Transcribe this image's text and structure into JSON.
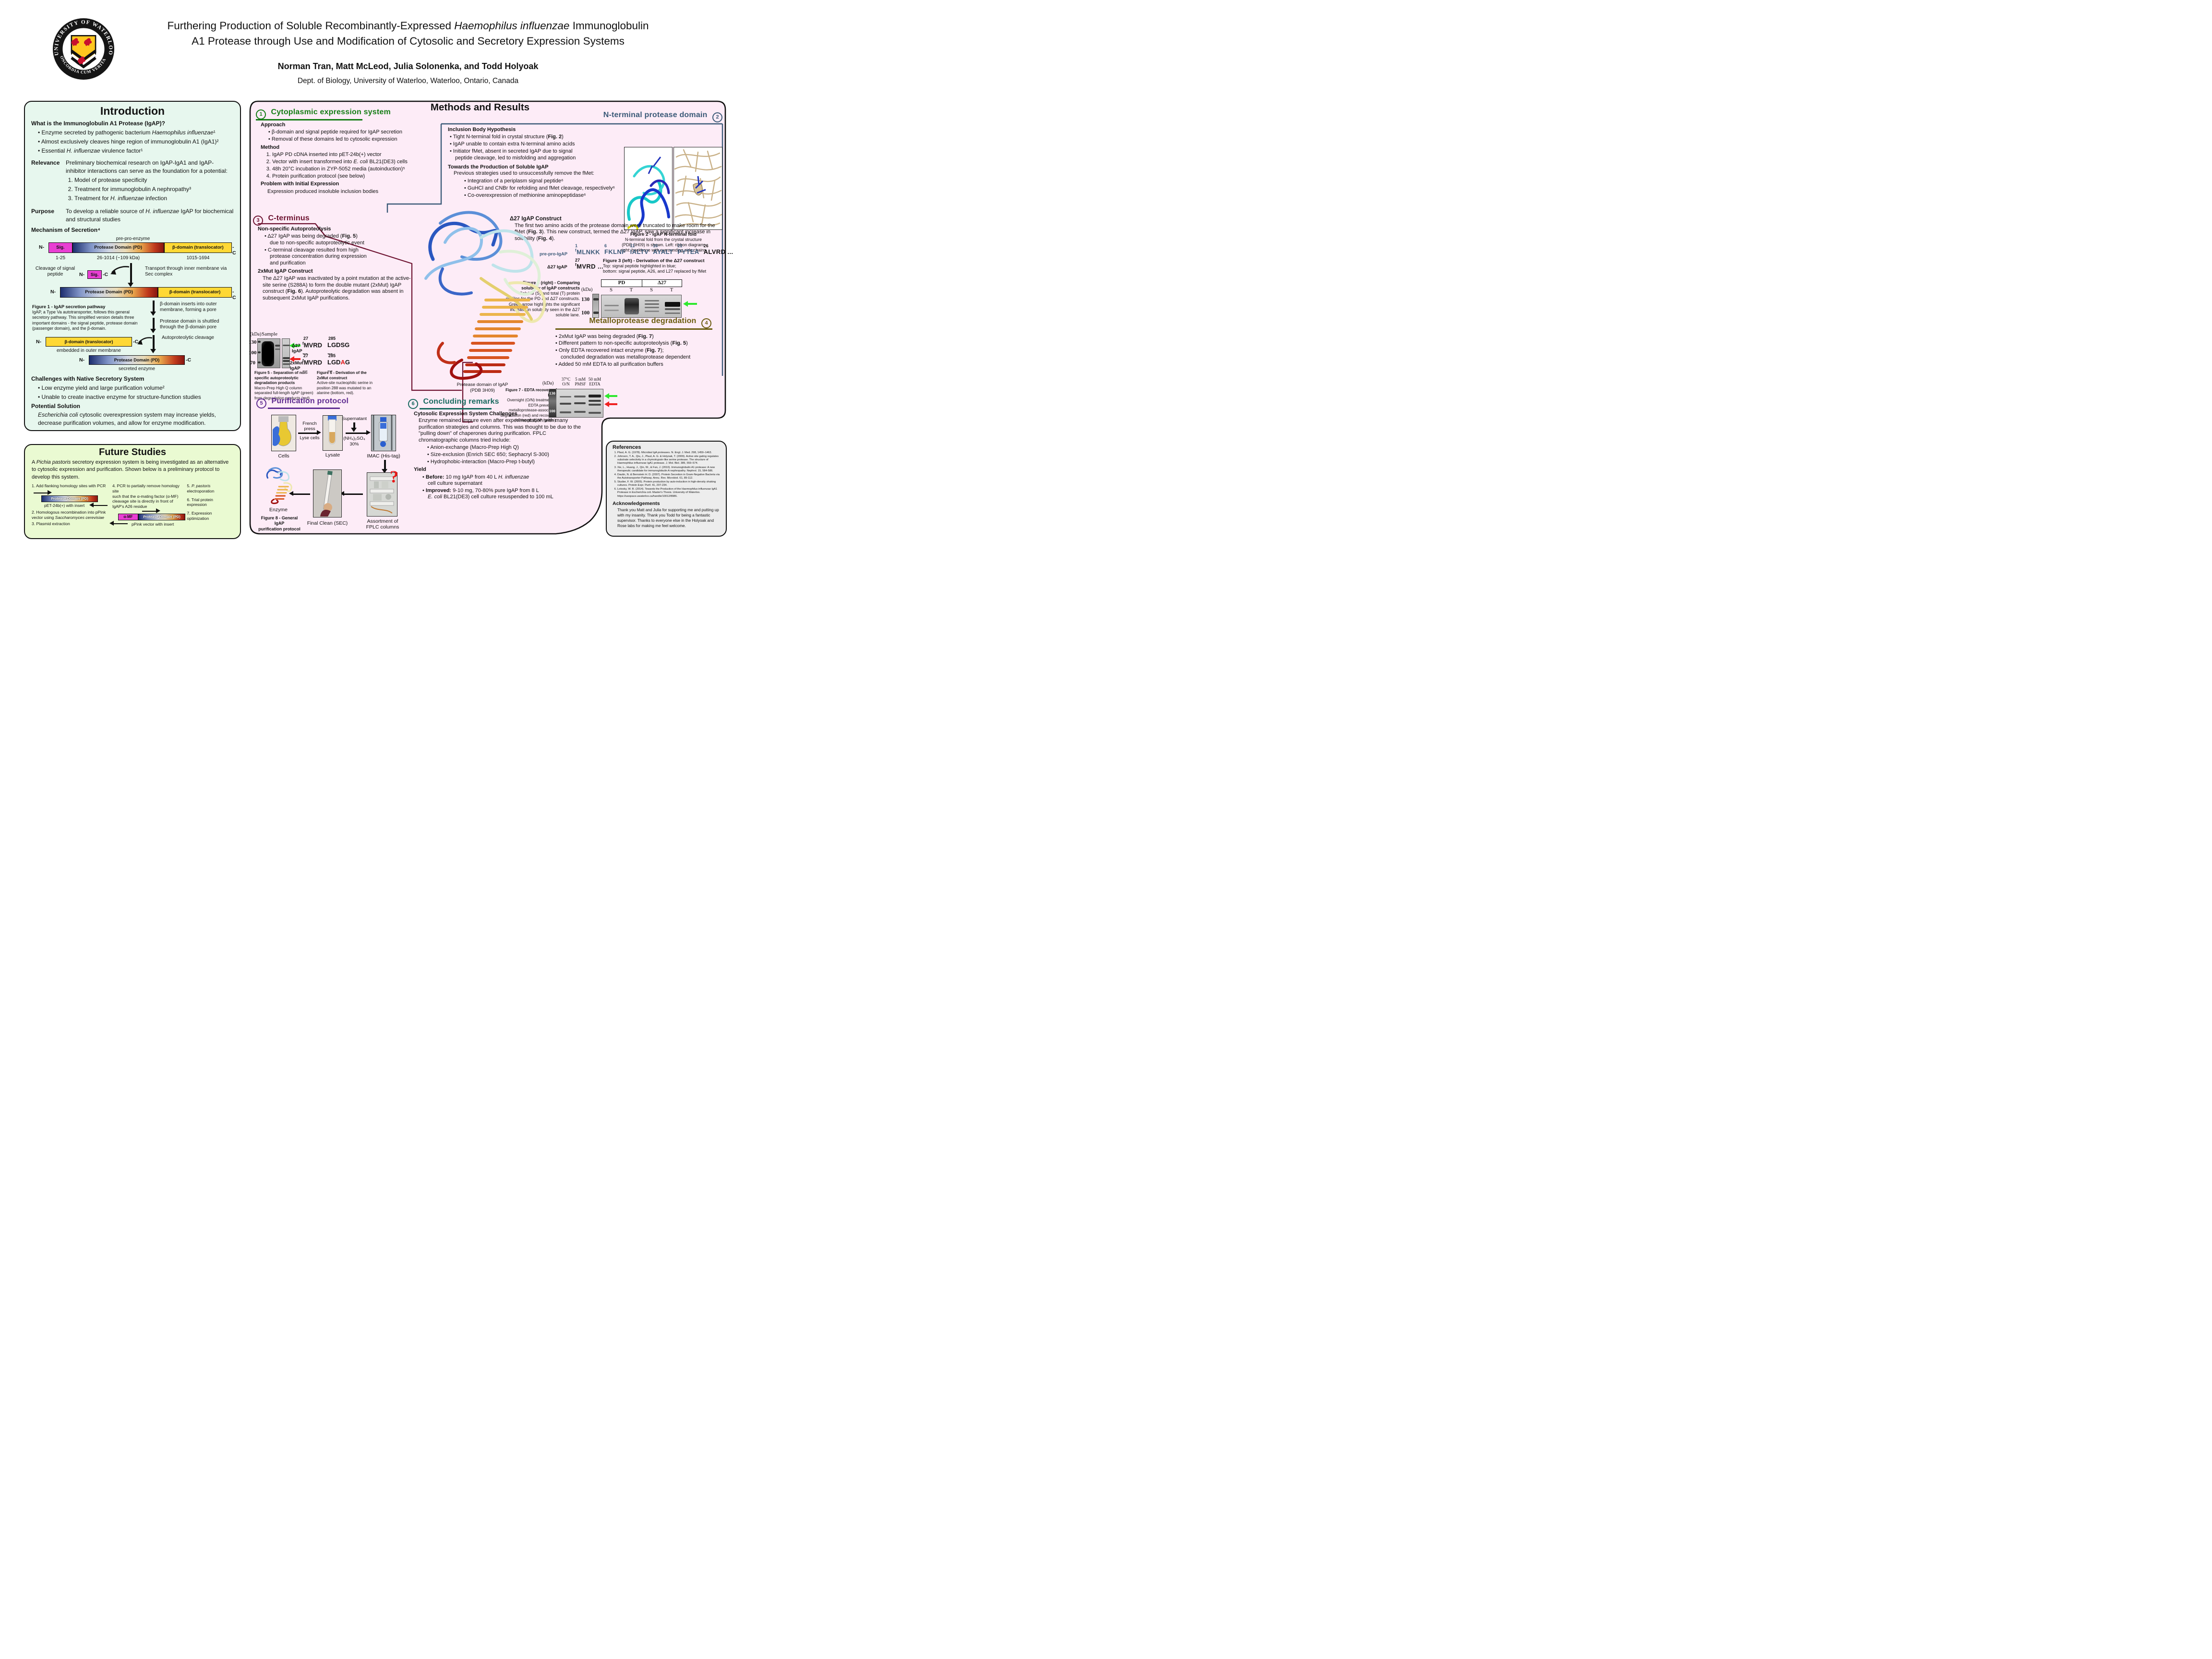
{
  "header": {
    "title_pre": "Furthering Production of Soluble Recombinantly-Expressed ",
    "title_species": "Haemophilus influenzae",
    "title_post": " Immunoglobulin",
    "title_line2": "A1 Protease through Use and Modification of Cytosolic and Secretory Expression Systems",
    "authors": "Norman Tran, Matt McLeod, Julia Solonenka, and Todd Holyoak",
    "affiliation": "Dept. of Biology, University of Waterloo, Waterloo, Ontario, Canada",
    "logo_top": "UNIVERSITY OF WATERLOO",
    "logo_bottom": "CONCORDIA CUM VERITATE"
  },
  "intro": {
    "title": "Introduction",
    "q": "What is the Immunoglobulin A1 Protease (IgAP)?",
    "q_bullets": [
      "Enzyme secreted by pathogenic bacterium _Haemophilus influenzae_¹",
      "Almost exclusively cleaves hinge region of immunoglobulin A1 (IgA1)²",
      "Essential _H. influenzae_ virulence factor¹"
    ],
    "relevance_label": "Relevance",
    "relevance_text": "Preliminary biochemical research on IgAP-IgA1 and IgAP-inhibitor interactions can serve as the foundation for a potential:",
    "relevance_items": [
      "Model of protease specificity",
      "Treatment for immunoglobulin A nephropathy³",
      "Treatment for _H. influenzae_ infection"
    ],
    "purpose_label": "Purpose",
    "purpose_text": "To develop a reliable source of _H. influenzae_ IgAP for biochemical and structural studies",
    "mechanism_label": "Mechanism of Secretion⁴",
    "fig1": {
      "pre_pro": "pre-pro-enzyme",
      "n": "N-",
      "c": "-C",
      "sig": "Sig.",
      "pd": "Protease Domain (PD)",
      "bd": "β-domain (translocator)",
      "r1": "1-25",
      "r2": "26-1014 (~109 kDa)",
      "r3": "1015-1694",
      "cleave": "Cleavage of signal peptide",
      "transport": "Transport through inner membrane via Sec complex",
      "insert": "β-domain inserts into outer membrane, forming a pore",
      "shuttle": "Protease domain is shuttled through the β-domain pore",
      "auto": "Autoproteolytic cleavage",
      "embedded": "embedded in outer membrane",
      "secreted": "secreted enzyme",
      "cap_title": "Figure 1 - IgAP secretion pathway",
      "cap_body": "IgAP, a Type Va autotransporter, follows this general secretory pathway. This simplified version details three important domains - the signal peptide, protease domain (passenger domain), and the β-domain."
    },
    "challenges_label": "Challenges with Native Secretory System",
    "challenges": [
      "Low enzyme yield and large purification volume²",
      "Unable to create inactive enzyme for structure-function studies"
    ],
    "solution_label": "Potential Solution",
    "solution_text": "_Escherichia coli_ cytosolic overexpression system may increase yields, decrease purification volumes, and allow for enzyme modification."
  },
  "future": {
    "title": "Future Studies",
    "intro_text": "A _Pichia pastoris_ secretory expression system is being investigated as an alternative to cytosolic expression and purification. Shown below is a preliminary protocol to develop this system.",
    "step1": "1. Add flanking homology sites with PCR",
    "pd": "Protease Domain (PD)",
    "pet": "pET-24b(+) with insert",
    "step2": "2. Homologous recombination into pPink\n    vector using _Saccharomyces cerevisiae_",
    "step3": "3. Plasmid extraction",
    "step4": "4. PCR to partially remove homology site\n    such that the α-mating factor (α-MF)\n    cleavage site is directly in front of\n    IgAP's A26 residue",
    "amf": "α-MF",
    "ppink": "pPink vector with insert",
    "step5": "5. _P. pastoris_ electroporation",
    "step6": "6. Trial protein expression",
    "step7": "7. Expression optimization"
  },
  "methods": {
    "title": "Methods and Results",
    "s1": {
      "num": "1",
      "title": "Cytoplasmic expression system",
      "approach_label": "Approach",
      "approach": [
        "β-domain and signal peptide required for IgAP secretion",
        "Removal of these domains led to cytosolic expression"
      ],
      "method_label": "Method",
      "method": [
        "IgAP PD cDNA inserted into pET-24b(+) vector",
        "Vector with insert transformed into _E. coli_ BL21(DE3) cells",
        "48h 20°C incubation in ZYP-5052 media (autoinduction)⁵",
        "Protein purification protocol (see below)"
      ],
      "problem_label": "Problem with Initial Expression",
      "problem_text": "Expression produced insoluble inclusion bodies"
    },
    "s2": {
      "num": "2",
      "title": "N-terminal protease domain",
      "inclusion_label": "Inclusion Body Hypothesis",
      "inclusion": [
        "Tight N-terminal fold in crystal structure (**Fig. 2**)",
        "IgAP unable to contain extra N-terminal amino acids",
        "Initiator fMet, absent in secreted IgAP due to signal\npeptide cleavage, led to misfolding and aggregation"
      ],
      "towards_label": "Towards the Production of Soluble IgAP",
      "towards_intro": "Previous strategies used to unsuccessfully remove the fMet:",
      "towards": [
        "Integration of a periplasm signal peptide⁶",
        "GuHCl and CNBr for refolding and fMet cleavage, respectively⁶",
        "Co-overexpression of methionine aminopeptidase⁶"
      ],
      "fig2_cap_title": "Figure 2 - IgAP N-terminal fold",
      "fig2_cap_body": "N-terminal fold from the crystal structure\n(PDB 3H09) is shown. Left: ribbon diagram;\nright: backbone with surrounding side chains"
    },
    "d27": {
      "heading": "Δ27 IgAP Construct",
      "text": "The first two amino acids of the protease domain were truncated to make room for the fMet (**Fig. 3**). This new construct, termed the Δ27 IgAP, saw a significant increase in solubility (**Fig. 4**).",
      "seq_label": "pre-pro-IgAP",
      "f": "f",
      "n1": "1",
      "t1": "MLNKK",
      "n2": "6",
      "t2": "FKLNF",
      "n3": "11",
      "t3": "IALTV",
      "n4": "16",
      "t4": "AYALT",
      "n5": "21",
      "t5": "PYTEA",
      "n6": "26",
      "t6": "ALVRD ...",
      "row2_label": "Δ27 IgAP",
      "row2_n": "27",
      "row2_t": "MVRD ...",
      "fig3_cap_title": "Figure 3 (left) - Derivation of the Δ27 construct",
      "fig3_l1": "Top: signal peptide highlighted in blue;",
      "fig3_l2": "bottom: signal peptide, A26, and L27 replaced by fMet",
      "fig4_cap": "**Figure 4 (right) - Comparing**\n**solubility of IgAP constructs**\nSoluble (S) and total (T) protein\nprofiles for the PD and Δ27 constructs.\nGreen arrow highlights the significant\nincrease in solubility seen in the Δ27\nsoluble lane.",
      "kda": "(kDa)",
      "pd": "PD",
      "d27": "Δ27",
      "s": "S",
      "t": "T",
      "m130": "130",
      "m100": "100"
    },
    "s3": {
      "num": "3",
      "title": "C-terminus",
      "nonspec_label": "Non-specific Autoproteolysis",
      "nonspec": [
        "Δ27 IgAP was being degraded (**Fig. 5**)\ndue to non-specific autoproteolytic event",
        "C-terminal cleavage resulted from high\nprotease concentration during expression\nand purification"
      ],
      "construct_label": "2xMut IgAP Construct",
      "construct_text": "The Δ27 IgAP was inactivated by a point mutation at the active-site serine (S288A) to form the double mutant (2xMut) IgAP construct (**Fig. 6**). Autoproteolytic degradation was absent in subsequent 2xMut IgAP purifications."
    },
    "fig5": {
      "kda": "(kDa)",
      "sample": "Sample",
      "m130": "130",
      "m100": "100",
      "m70": "70",
      "cap": "**Figure 5 - Separation of non-specific autoproteolytic degradation products**\nMacro-Prep High Q column separated full-length IgAP (green) from degradation products (red)."
    },
    "fig6": {
      "n27": "27",
      "n285": "285",
      "r1_label": "Δ27 IgAP",
      "seq": "MVRD ...",
      "r1_end": "LGDSG ...",
      "r2_label": "2xMut IgAP",
      "r2_end": "LGD~A~G ...",
      "cap": "**Figure 6 - Derivation of the 2xMut construct**\nActive-site nucleophilic serine in position 288 was mutated to an alanine (bottom, red)."
    },
    "structure_cap1": "Protease domain of IgAP",
    "structure_cap2": "(PDB 3H09)",
    "s4": {
      "num": "4",
      "title": "Metalloprotease degradation",
      "bullets": [
        "2xMut IgAP was being degraded (**Fig. 7**)",
        "Different pattern to non-specific autoproteolysis (**Fig. 5**)",
        "Only EDTA recovered intact enzyme (**Fig. 7**);\nconcluded degradation was metalloprotease dependent",
        "Added 50 mM EDTA to all purification buffers"
      ],
      "fig7": {
        "kda": "(kDa)",
        "h1a": "37°C",
        "h1b": "O/N",
        "h2a": "5 mM",
        "h2b": "PMSF",
        "h3a": "50 mM",
        "h3b": "EDTA",
        "m130": "130",
        "m100": "100",
        "cap": "**Figure 7 - EDTA recovery of IgAP**\nOvernight (O/N) treatment of EDTA prevented metalloprotease-associated degradation (red) and recovered full-length IgAP (green)."
      }
    },
    "s5": {
      "num": "5",
      "title": "Purification protocol",
      "cells": "Cells",
      "french": "French press",
      "lyse": "Lyse cells",
      "lysate": "Lysate",
      "supernatant": "Supernatant",
      "salt": "(NH₄)₂SO₄",
      "pct": "30%",
      "imac": "IMAC (His-tag)",
      "fplc": "Assortment of\nFPLC columns",
      "sec": "Final Clean (SEC)",
      "enzyme": "Enzyme",
      "q": "?",
      "cap": "Figure 8 - General IgAP\npurification protocol"
    },
    "s6": {
      "num": "6",
      "title": "Concluding remarks",
      "challenges_label": "Cytosolic Expression System Challenges",
      "para": "Enzyme remained impure even after experimentation with many purification strategies and columns. This was thought to be due to the \"pulling down\" of chaperones during purification. FPLC chromatographic columns tried include:",
      "columns": [
        "Anion-exchange (Macro-Prep High Q)",
        "Size-exclusion (Enrich SEC 650; Sephacryl S-300)",
        "Hydrophobic-interaction (Macro-Prep t-butyl)"
      ],
      "yield_label": "Yield",
      "yield": [
        "**Before:** 10 mg IgAP from 40 L _H. influenzae_\ncell culture supernatant",
        "**Improved:** 9-10 mg, 70-80% pure IgAP from 8 L\n_E. coli_ BL21(DE3) cell culture resuspended to 100 mL"
      ]
    }
  },
  "refs": {
    "title": "References",
    "items": [
      "Plaut, A. G. (1978). Microbial IgA proteases. N. Engl. J. Med. 298, 1459–1463.",
      "Johnson, T. A., Qiu, J., Plaut, A. G. & Holyoak, T. (2009). Active site gating regulates substrate selectivity in a chymotrypsin-like serine protease. The structure of Haemophilus influenzae IgA1 protease. J. Mol. Biol. 389, 559–574.",
      "Xie, L., Huang, J., Qin, W., & Fan, J. (2010). Immunoglobulin A1 protease: A new therapeutic candidate for immunoglobulin A nephropathy. Nephrol. 15, 584-586.",
      "Dautin, N. & Bernstein H. D. (2007). Protein Secretion in Gram-Negative Bacteria via the Autotransporter Pathway. Annu. Rev. Microbiol. 61, 89-112.",
      "Studier, F. W. (2005). Protein production by auto-induction in high-density shaking cultures. Protein Expr. Purif. 41, 207-234.",
      "Lotosky, W. R. (2014). Towards the Production of the Haemophilus influenzae IgA1 Protease in Escherichia coli. Master's Thesis. University of Waterloo. https://uwspace.uwaterloo.ca/handle/10012/8986."
    ],
    "ack_title": "Acknowledgements",
    "ack_text": "Thank you Matt and Julia for supporting me and putting up with my insanity. Thank you Todd for being a fantastic supervisor. Thanks to everyone else in the Holyoak and Rose labs for making me feel welcome."
  },
  "colors": {
    "s1_green": "#157d15",
    "s2_slate": "#3b5a78",
    "s3_maroon": "#6d1230",
    "s4_olive": "#6b5c10",
    "s5_purple": "#5f2d91",
    "s6_teal": "#17695f",
    "pink_bg": "#fdecf7",
    "intro_bg": "#e7f7ee",
    "future_bg": "#eafad2"
  }
}
